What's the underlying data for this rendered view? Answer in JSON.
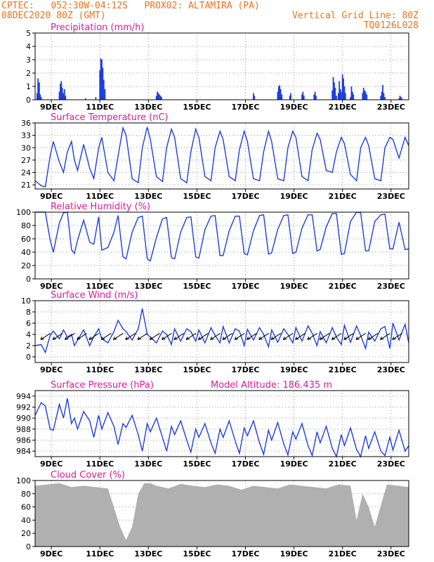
{
  "header": {
    "line1_left": "CPTEC:   052:30W-04:12S   PROX02: ALTAMIRA (PA)",
    "line2_left": "08DEC2020 80Z (GMT)",
    "line2_right": "Vertical Grid Line: 80Z",
    "line3_right": "TQ0126L028",
    "color": "#e8741c"
  },
  "colors": {
    "title": "#e0199a",
    "series": "#1f3ee0",
    "cloud": "#b0b0b0",
    "grid": "#9a9a9a"
  },
  "x_axis": {
    "range_days": [
      0,
      15.4
    ],
    "tick_days": [
      0.67,
      2.67,
      4.67,
      6.67,
      8.67,
      10.67,
      12.67,
      14.67
    ],
    "tick_labels": [
      "9DEC",
      "11DEC",
      "13DEC",
      "15DEC",
      "17DEC",
      "19DEC",
      "21DEC",
      "23DEC"
    ]
  },
  "chart_data": [
    {
      "type": "bar",
      "title": "Precipitation (mm/h)",
      "ylim": [
        0,
        5
      ],
      "yticks": [
        0,
        1,
        2,
        3,
        4,
        5
      ],
      "grid": true,
      "x": [
        0.08,
        0.12,
        0.17,
        0.21,
        0.25,
        1.0,
        1.04,
        1.08,
        1.12,
        1.17,
        1.21,
        1.25,
        2.08,
        2.5,
        2.67,
        2.71,
        2.75,
        2.79,
        2.83,
        2.88,
        5.0,
        5.04,
        5.08,
        5.12,
        5.17,
        5.21,
        9.0,
        9.04,
        10.0,
        10.04,
        10.08,
        10.12,
        10.17,
        10.5,
        10.54,
        11.0,
        11.04,
        11.08,
        11.5,
        11.54,
        11.58,
        12.25,
        12.29,
        12.33,
        12.37,
        12.42,
        12.5,
        12.54,
        12.58,
        12.62,
        12.67,
        12.71,
        12.75,
        12.79,
        13.0,
        13.04,
        13.08,
        13.12,
        13.5,
        13.54,
        13.58,
        13.62,
        13.67,
        14.25,
        14.29,
        14.33,
        14.37,
        14.42,
        15.0,
        15.04,
        15.08,
        15.12
      ],
      "values": [
        0.5,
        1.6,
        1.3,
        0.4,
        0.2,
        0.6,
        1.2,
        1.4,
        0.9,
        0.5,
        0.8,
        0.3,
        0.1,
        0.2,
        2.2,
        3.1,
        3.0,
        2.4,
        1.5,
        0.8,
        0.3,
        0.6,
        0.5,
        0.4,
        0.3,
        0.2,
        0.5,
        0.3,
        0.6,
        1.0,
        1.1,
        0.8,
        0.4,
        0.3,
        0.5,
        0.4,
        0.6,
        0.3,
        0.4,
        0.6,
        0.3,
        0.7,
        1.7,
        1.3,
        0.9,
        0.3,
        0.5,
        1.4,
        0.8,
        0.6,
        1.9,
        1.6,
        1.0,
        0.5,
        0.2,
        1.0,
        0.6,
        0.4,
        0.5,
        0.9,
        0.7,
        0.6,
        0.4,
        0.3,
        0.6,
        1.1,
        0.5,
        0.2,
        0.1,
        0.3,
        0.2,
        0.1
      ]
    },
    {
      "type": "line",
      "title": "Surface Temperature (nC)",
      "ylim": [
        20,
        36
      ],
      "yticks": [
        21,
        24,
        27,
        30,
        33,
        36
      ],
      "grid": true,
      "x": [
        0.0,
        0.25,
        0.42,
        0.62,
        0.75,
        1.0,
        1.17,
        1.33,
        1.5,
        1.62,
        1.75,
        2.0,
        2.25,
        2.42,
        2.62,
        2.75,
        3.0,
        3.25,
        3.42,
        3.62,
        3.75,
        4.0,
        4.25,
        4.42,
        4.62,
        4.75,
        5.0,
        5.25,
        5.42,
        5.62,
        5.75,
        6.0,
        6.25,
        6.42,
        6.62,
        6.75,
        7.0,
        7.25,
        7.42,
        7.62,
        7.75,
        8.0,
        8.25,
        8.42,
        8.62,
        8.75,
        9.0,
        9.25,
        9.42,
        9.62,
        9.75,
        10.0,
        10.25,
        10.42,
        10.62,
        10.75,
        11.0,
        11.25,
        11.42,
        11.62,
        11.75,
        12.0,
        12.25,
        12.42,
        12.62,
        12.75,
        13.0,
        13.25,
        13.42,
        13.62,
        13.75,
        14.0,
        14.25,
        14.42,
        14.62,
        14.75,
        15.0,
        15.25,
        15.4
      ],
      "values": [
        22.0,
        20.8,
        20.5,
        28.0,
        31.5,
        26.5,
        24.0,
        29.0,
        31.5,
        27.0,
        24.5,
        30.8,
        25.0,
        22.5,
        30.0,
        32.5,
        24.0,
        22.0,
        28.0,
        34.8,
        33.0,
        22.5,
        21.5,
        30.0,
        35.0,
        32.0,
        23.0,
        21.8,
        30.0,
        34.5,
        32.5,
        22.5,
        21.5,
        29.0,
        34.5,
        32.5,
        23.0,
        22.0,
        30.0,
        34.0,
        32.0,
        23.0,
        22.0,
        29.5,
        34.0,
        31.5,
        22.5,
        22.0,
        29.0,
        34.0,
        31.5,
        22.5,
        22.0,
        30.0,
        34.0,
        32.5,
        23.0,
        22.0,
        29.5,
        33.5,
        32.0,
        24.5,
        24.0,
        29.0,
        32.5,
        31.0,
        23.5,
        22.0,
        30.0,
        32.5,
        30.5,
        22.5,
        22.0,
        30.0,
        32.5,
        32.0,
        27.5,
        32.5,
        30.5
      ]
    },
    {
      "type": "line",
      "title": "Relative Humidity (%)",
      "ylim": [
        0,
        100
      ],
      "yticks": [
        0,
        20,
        40,
        60,
        80,
        100
      ],
      "grid": true,
      "x": [
        0.0,
        0.25,
        0.42,
        0.62,
        0.75,
        1.0,
        1.17,
        1.33,
        1.5,
        1.62,
        1.75,
        2.0,
        2.25,
        2.42,
        2.62,
        2.75,
        3.0,
        3.25,
        3.42,
        3.62,
        3.75,
        4.0,
        4.25,
        4.42,
        4.62,
        4.75,
        5.0,
        5.25,
        5.42,
        5.62,
        5.75,
        6.0,
        6.25,
        6.42,
        6.62,
        6.75,
        7.0,
        7.25,
        7.42,
        7.62,
        7.75,
        8.0,
        8.25,
        8.42,
        8.62,
        8.75,
        9.0,
        9.25,
        9.42,
        9.62,
        9.75,
        10.0,
        10.25,
        10.42,
        10.62,
        10.75,
        11.0,
        11.25,
        11.42,
        11.62,
        11.75,
        12.0,
        12.25,
        12.42,
        12.62,
        12.75,
        13.0,
        13.25,
        13.42,
        13.62,
        13.75,
        14.0,
        14.25,
        14.42,
        14.62,
        14.75,
        15.0,
        15.25,
        15.4
      ],
      "values": [
        100,
        100,
        100,
        58,
        40,
        84,
        99,
        100,
        44,
        38,
        58,
        88,
        55,
        52,
        93,
        43,
        47,
        70,
        95,
        33,
        30,
        70,
        92,
        94,
        30,
        27,
        62,
        90,
        92,
        32,
        30,
        70,
        92,
        93,
        33,
        31,
        74,
        94,
        95,
        35,
        35,
        72,
        94,
        94,
        38,
        36,
        72,
        95,
        96,
        37,
        39,
        74,
        95,
        96,
        38,
        40,
        76,
        96,
        96,
        42,
        44,
        78,
        98,
        98,
        37,
        38,
        86,
        100,
        99,
        42,
        42,
        86,
        96,
        97,
        45,
        45,
        85,
        44,
        45
      ]
    },
    {
      "type": "line",
      "title": "Surface Wind (m/s)",
      "ylim": [
        -1,
        10
      ],
      "yticks": [
        0,
        2,
        4,
        6,
        8,
        10
      ],
      "grid": true,
      "x": [
        0.0,
        0.25,
        0.42,
        0.62,
        0.75,
        1.0,
        1.17,
        1.33,
        1.5,
        1.62,
        1.75,
        2.0,
        2.25,
        2.42,
        2.62,
        2.75,
        3.0,
        3.25,
        3.42,
        3.62,
        3.75,
        4.0,
        4.25,
        4.42,
        4.62,
        4.75,
        5.0,
        5.25,
        5.42,
        5.62,
        5.75,
        6.0,
        6.25,
        6.42,
        6.62,
        6.75,
        7.0,
        7.25,
        7.42,
        7.62,
        7.75,
        8.0,
        8.25,
        8.42,
        8.62,
        8.75,
        9.0,
        9.25,
        9.42,
        9.62,
        9.75,
        10.0,
        10.25,
        10.42,
        10.62,
        10.75,
        11.0,
        11.25,
        11.42,
        11.62,
        11.75,
        12.0,
        12.25,
        12.42,
        12.62,
        12.75,
        13.0,
        13.25,
        13.42,
        13.62,
        13.75,
        14.0,
        14.25,
        14.42,
        14.62,
        14.75,
        15.0,
        15.25,
        15.4
      ],
      "values": [
        2.0,
        2.2,
        0.8,
        3.8,
        4.6,
        3.2,
        4.8,
        3.5,
        4.0,
        2.0,
        3.0,
        4.8,
        2.0,
        3.6,
        5.0,
        3.2,
        2.5,
        4.5,
        6.5,
        5.0,
        4.5,
        3.0,
        5.0,
        8.6,
        4.0,
        3.5,
        2.5,
        4.6,
        4.0,
        2.2,
        5.0,
        2.8,
        5.0,
        4.5,
        2.8,
        4.8,
        2.5,
        5.2,
        3.8,
        2.5,
        5.4,
        2.5,
        5.0,
        4.6,
        2.0,
        4.9,
        3.0,
        5.2,
        4.0,
        1.8,
        4.8,
        2.6,
        5.0,
        4.0,
        2.5,
        5.2,
        2.8,
        5.5,
        4.2,
        2.0,
        4.5,
        2.5,
        5.2,
        3.5,
        2.2,
        5.6,
        2.6,
        5.5,
        3.8,
        1.5,
        4.4,
        2.8,
        5.0,
        5.4,
        1.5,
        6.0,
        3.0,
        5.8,
        2.5
      ]
    },
    {
      "type": "line",
      "title": "Surface Pressure (hPa)",
      "subtitle": "Model Altitude: 186.435 m",
      "ylim": [
        983,
        995
      ],
      "yticks": [
        984,
        986,
        988,
        990,
        992,
        994
      ],
      "grid": true,
      "x": [
        0.0,
        0.25,
        0.42,
        0.62,
        0.75,
        1.0,
        1.17,
        1.33,
        1.5,
        1.62,
        1.75,
        2.0,
        2.25,
        2.42,
        2.62,
        2.75,
        3.0,
        3.25,
        3.42,
        3.62,
        3.75,
        4.0,
        4.25,
        4.42,
        4.62,
        4.75,
        5.0,
        5.25,
        5.42,
        5.62,
        5.75,
        6.0,
        6.25,
        6.42,
        6.62,
        6.75,
        7.0,
        7.25,
        7.42,
        7.62,
        7.75,
        8.0,
        8.25,
        8.42,
        8.62,
        8.75,
        9.0,
        9.25,
        9.42,
        9.62,
        9.75,
        10.0,
        10.25,
        10.42,
        10.62,
        10.75,
        11.0,
        11.25,
        11.42,
        11.62,
        11.75,
        12.0,
        12.25,
        12.42,
        12.62,
        12.75,
        13.0,
        13.25,
        13.42,
        13.62,
        13.75,
        14.0,
        14.25,
        14.42,
        14.62,
        14.75,
        15.0,
        15.25,
        15.4
      ],
      "values": [
        990.5,
        992.8,
        992.2,
        988.0,
        987.8,
        992.5,
        990.0,
        993.6,
        989.0,
        990.0,
        988.0,
        991.2,
        989.5,
        986.5,
        990.5,
        988.0,
        991.0,
        988.5,
        985.2,
        989.0,
        988.3,
        990.5,
        987.0,
        984.0,
        989.0,
        987.5,
        990.0,
        986.5,
        984.0,
        988.5,
        987.0,
        989.5,
        986.0,
        983.8,
        988.0,
        986.5,
        989.0,
        985.5,
        983.6,
        988.0,
        986.5,
        989.5,
        985.8,
        983.6,
        988.2,
        986.8,
        989.5,
        985.5,
        983.4,
        987.8,
        986.0,
        989.2,
        985.3,
        983.3,
        987.5,
        986.2,
        989.0,
        985.0,
        983.2,
        987.5,
        985.5,
        988.5,
        984.5,
        983.0,
        987.0,
        985.0,
        988.2,
        984.3,
        983.0,
        986.8,
        984.5,
        987.5,
        984.0,
        983.2,
        986.5,
        984.2,
        987.8,
        984.0,
        985.0
      ]
    },
    {
      "type": "area",
      "title": "Cloud Cover (%)",
      "ylim": [
        0,
        100
      ],
      "yticks": [
        0,
        20,
        40,
        60,
        80,
        100
      ],
      "grid": true,
      "x": [
        0.0,
        0.5,
        1.0,
        1.5,
        2.0,
        2.5,
        3.0,
        3.5,
        3.75,
        4.0,
        4.25,
        4.5,
        4.75,
        5.0,
        5.5,
        6.0,
        6.5,
        7.0,
        7.5,
        8.0,
        8.5,
        9.0,
        9.5,
        10.0,
        10.5,
        11.0,
        11.5,
        12.0,
        12.5,
        13.0,
        13.25,
        13.5,
        13.75,
        14.0,
        14.5,
        15.0,
        15.4
      ],
      "values": [
        92,
        94,
        96,
        90,
        92,
        90,
        88,
        30,
        10,
        30,
        80,
        96,
        96,
        92,
        88,
        95,
        92,
        90,
        94,
        92,
        86,
        92,
        90,
        88,
        94,
        92,
        90,
        88,
        94,
        92,
        40,
        80,
        60,
        30,
        94,
        92,
        90
      ]
    }
  ]
}
